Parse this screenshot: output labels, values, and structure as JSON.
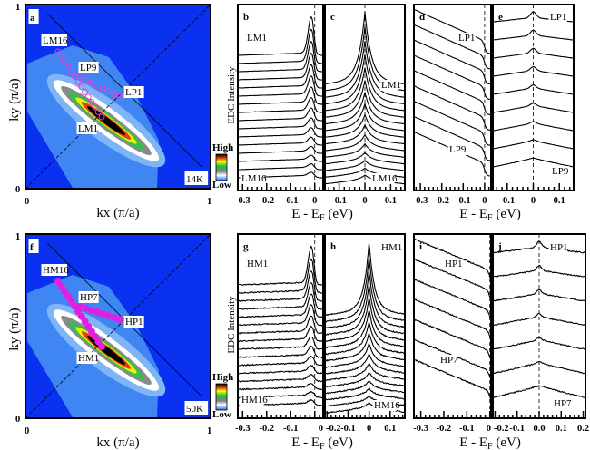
{
  "chart_data": [
    {
      "type": "heatmap",
      "panel": "a",
      "title": "a",
      "xlabel": "kx (π/a)",
      "ylabel": "ky (π/a)",
      "xlim": [
        0,
        1
      ],
      "ylim": [
        0,
        1
      ],
      "x_ticks": [
        "0",
        "1"
      ],
      "y_ticks": [
        "0",
        "1"
      ],
      "temperature": "14K",
      "colorbar": {
        "high": "High",
        "low": "Low"
      },
      "point_labels": [
        "LM16",
        "LP9",
        "LP1",
        "LM1"
      ],
      "marker_style": "open-circle",
      "marker_color": "#e040e0"
    },
    {
      "type": "heatmap",
      "panel": "f",
      "title": "f",
      "xlabel": "kx (π/a)",
      "ylabel": "ky (π/a)",
      "xlim": [
        0,
        1
      ],
      "ylim": [
        0,
        1
      ],
      "x_ticks": [
        "0",
        "1"
      ],
      "y_ticks": [
        "0",
        "1"
      ],
      "temperature": "50K",
      "colorbar": {
        "high": "High",
        "low": "Low"
      },
      "point_labels": [
        "HM16",
        "HP7",
        "HP1",
        "HM1"
      ],
      "marker_style": "filled-circle",
      "marker_color": "#e020e0"
    },
    {
      "type": "line",
      "panel": "b",
      "title": "b",
      "shape": "edc",
      "xlim": [
        -0.32,
        0.035
      ],
      "ticks": [
        "-0.3",
        "-0.2",
        "-0.1",
        "0"
      ],
      "tick_values": [
        -0.3,
        -0.2,
        -0.1,
        0
      ],
      "curves": 16,
      "top_label": "LM1",
      "bottom_label": "LM16",
      "ylabel": "EDC Intensity"
    },
    {
      "type": "line",
      "panel": "c",
      "title": "c",
      "shape": "sym-edc",
      "xlim": [
        -0.155,
        0.155
      ],
      "ticks": [
        "-0.1",
        "0",
        "0.1"
      ],
      "tick_values": [
        -0.1,
        0,
        0.1
      ],
      "curves": 16,
      "top_label": "LM1",
      "bottom_label": "LM16"
    },
    {
      "type": "line",
      "panel": "d",
      "title": "d",
      "shape": "gap",
      "xlim": [
        -0.33,
        0.03
      ],
      "ticks": [
        "-0.3",
        "-0.2",
        "-0.1",
        "0"
      ],
      "tick_values": [
        -0.3,
        -0.2,
        -0.1,
        0
      ],
      "curves": 9,
      "top_label": "LP1",
      "bottom_label": "LP9"
    },
    {
      "type": "line",
      "panel": "e",
      "title": "e",
      "shape": "v",
      "xlim": [
        -0.155,
        0.155
      ],
      "ticks": [
        "-0.1",
        "0",
        "0.1"
      ],
      "tick_values": [
        -0.1,
        0,
        0.1
      ],
      "curves": 9,
      "top_label": "LP1",
      "bottom_label": "LP9"
    },
    {
      "type": "line",
      "panel": "g",
      "title": "g",
      "shape": "edc",
      "xlim": [
        -0.32,
        0.035
      ],
      "ticks": [
        "-0.3",
        "-0.2",
        "-0.1",
        "0"
      ],
      "tick_values": [
        -0.3,
        -0.2,
        -0.1,
        0
      ],
      "curves": 16,
      "top_label": "HM1",
      "bottom_label": "HM16",
      "ylabel": "EDC Intensity"
    },
    {
      "type": "line",
      "panel": "h",
      "title": "h",
      "shape": "sym-edc",
      "xlim": [
        -0.21,
        0.17
      ],
      "ticks": [
        "-0.2",
        "-0.1",
        "0",
        "0.1"
      ],
      "tick_values": [
        -0.2,
        -0.1,
        0,
        0.1
      ],
      "curves": 16,
      "top_label": "HM1",
      "bottom_label": "HM16"
    },
    {
      "type": "line",
      "panel": "i",
      "title": "i",
      "shape": "gap",
      "xlim": [
        -0.33,
        0.005
      ],
      "ticks": [
        "-0.3",
        "-0.2",
        "-0.1",
        "0"
      ],
      "tick_values": [
        -0.3,
        -0.2,
        -0.1,
        0
      ],
      "curves": 7,
      "top_label": "HP1",
      "bottom_label": "HP7"
    },
    {
      "type": "line",
      "panel": "j",
      "title": "j",
      "shape": "v",
      "xlim": [
        -0.21,
        0.21
      ],
      "ticks": [
        "-0.2",
        "-0.1",
        "0.0",
        "0.1",
        "0.2"
      ],
      "tick_values": [
        -0.2,
        -0.1,
        0,
        0.1,
        0.2
      ],
      "curves": 7,
      "top_label": "HP1",
      "bottom_label": "HP7"
    }
  ],
  "axis_titles": {
    "energy": "E - E",
    "energy_sub": "F",
    "energy_unit": " (eV)"
  }
}
